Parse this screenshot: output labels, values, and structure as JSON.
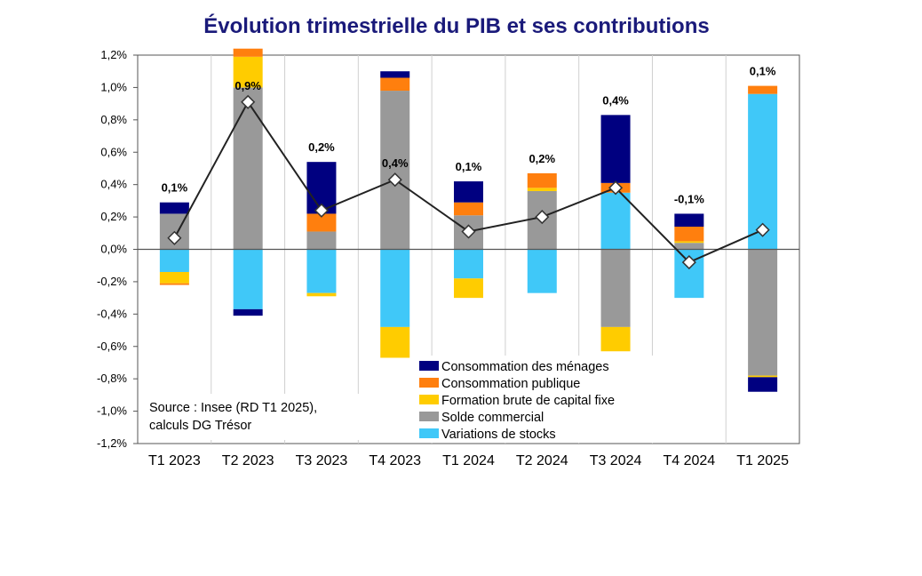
{
  "chart_data": {
    "type": "bar",
    "subtype": "stacked-bar-with-line",
    "title": "Évolution trimestrielle du PIB et ses contributions",
    "xlabel": "",
    "ylabel": "",
    "ylim": [
      -1.2,
      1.2
    ],
    "yticks": [
      "1,2%",
      "1,0%",
      "0,8%",
      "0,6%",
      "0,4%",
      "0,2%",
      "0,0%",
      "-0,2%",
      "-0,4%",
      "-0,6%",
      "-0,8%",
      "-1,0%",
      "-1,2%"
    ],
    "categories": [
      "T1 2023",
      "T2 2023",
      "T3 2023",
      "T4 2023",
      "T1 2024",
      "T2 2024",
      "T3 2024",
      "T4 2024",
      "T1 2025"
    ],
    "series": [
      {
        "name": "Variations de stocks",
        "color": "#40c8f8",
        "values": [
          -0.14,
          -0.37,
          -0.27,
          -0.48,
          -0.18,
          -0.27,
          0.35,
          -0.3,
          0.96
        ]
      },
      {
        "name": "Solde commercial",
        "color": "#999999",
        "values": [
          0.22,
          1.0,
          0.11,
          0.98,
          0.21,
          0.36,
          -0.48,
          0.04,
          -0.78
        ]
      },
      {
        "name": "Formation brute de capital fixe",
        "color": "#ffcc00",
        "values": [
          -0.07,
          0.19,
          -0.02,
          -0.19,
          -0.12,
          0.02,
          -0.15,
          0.01,
          -0.01
        ]
      },
      {
        "name": "Consommation publique",
        "color": "#ff7f0e",
        "values": [
          -0.01,
          0.05,
          0.11,
          0.08,
          0.08,
          0.09,
          0.06,
          0.09,
          0.05
        ]
      },
      {
        "name": "Consommation des ménages",
        "color": "#000080",
        "values": [
          0.07,
          -0.04,
          0.32,
          0.04,
          0.13,
          0.0,
          0.42,
          0.08,
          -0.09
        ]
      }
    ],
    "legend_order": [
      "Consommation des ménages",
      "Consommation publique",
      "Formation brute de capital fixe",
      "Solde commercial",
      "Variations de stocks"
    ],
    "line": {
      "name": "PIB",
      "values": [
        0.07,
        0.91,
        0.24,
        0.43,
        0.11,
        0.2,
        0.38,
        -0.08,
        0.12
      ]
    },
    "data_labels": [
      "0,1%",
      "0,9%",
      "0,2%",
      "0,4%",
      "0,1%",
      "0,2%",
      "0,4%",
      "-0,1%",
      "0,1%"
    ],
    "legend_position": "bottom-right inside plot",
    "source_lines": [
      "Source : Insee (RD T1 2025),",
      "calculs DG Trésor"
    ]
  }
}
